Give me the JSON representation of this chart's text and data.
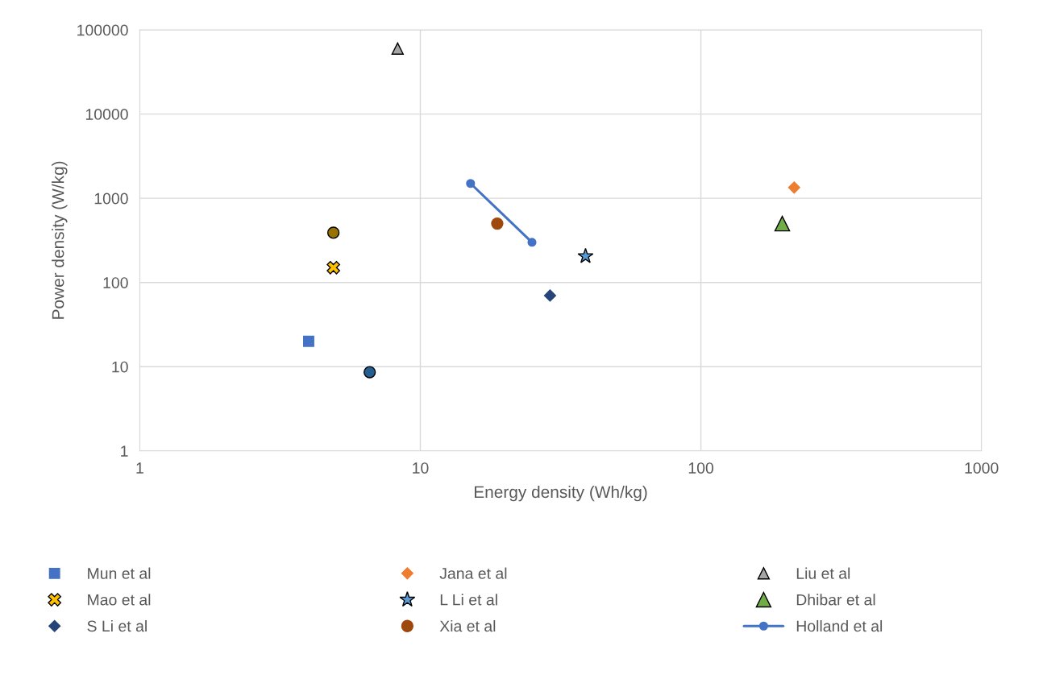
{
  "chart_data": {
    "type": "scatter",
    "xlabel": "Energy density (Wh/kg)",
    "ylabel": "Power density (W/kg)",
    "log": "xy",
    "xlim": [
      1,
      1000
    ],
    "xticks": [
      1,
      10,
      100,
      1000
    ],
    "ylim": [
      1,
      100000
    ],
    "yticks": [
      1,
      10,
      100,
      1000,
      10000,
      100000
    ],
    "grid": true,
    "legend": "bottom",
    "series": [
      {
        "name": "Mun et al",
        "color": "#4472c4",
        "marker": "square",
        "x": [
          4.0
        ],
        "values": [
          20
        ]
      },
      {
        "name": "Jana et al",
        "color": "#ed7d31",
        "marker": "diamond",
        "x": [
          215
        ],
        "values": [
          1340
        ]
      },
      {
        "name": "Liu et al",
        "color": "#a5a5a5",
        "marker": "triangle",
        "x": [
          8.3
        ],
        "values": [
          60000
        ]
      },
      {
        "name": "Mao et al",
        "color": "#ffc000",
        "marker": "cross",
        "x": [
          4.9
        ],
        "values": [
          150
        ]
      },
      {
        "name": "L Li et al",
        "color": "#5b9bd5",
        "marker": "star",
        "x": [
          38.8
        ],
        "values": [
          205
        ]
      },
      {
        "name": "Dhibar et al",
        "color": "#70ad47",
        "marker": "triangle",
        "x": [
          195
        ],
        "values": [
          500
        ]
      },
      {
        "name": "S Li et al",
        "color": "#264478",
        "marker": "diamond",
        "x": [
          29
        ],
        "values": [
          70
        ]
      },
      {
        "name": "Xia et al",
        "color": "#9e480e",
        "marker": "circle",
        "x": [
          18.8
        ],
        "values": [
          500
        ]
      },
      {
        "name": "Holland et al",
        "type": "line",
        "color": "#4472c4",
        "marker": "circle",
        "x": [
          15.1,
          25
        ],
        "values": [
          1500,
          300
        ]
      },
      {
        "color": "#997300",
        "marker": "circle",
        "x": [
          4.9
        ],
        "values": [
          390
        ]
      },
      {
        "color": "#255e91",
        "marker": "circle",
        "x": [
          6.6
        ],
        "values": [
          8.6
        ]
      }
    ]
  }
}
